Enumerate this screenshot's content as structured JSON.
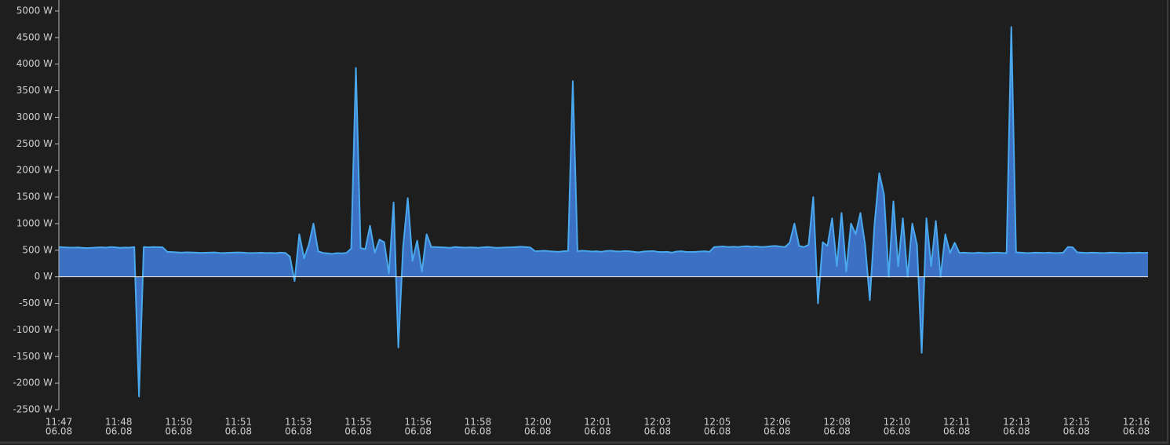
{
  "chart_data": {
    "type": "area",
    "series": [
      {
        "color": "#4aa8ee",
        "fill": "#3b70c2",
        "values": [
          560,
          555,
          550,
          548,
          552,
          545,
          540,
          545,
          550,
          555,
          548,
          560,
          555,
          545,
          550,
          548,
          560,
          -2250,
          560,
          555,
          560,
          558,
          555,
          470,
          465,
          460,
          455,
          460,
          458,
          455,
          450,
          452,
          455,
          458,
          450,
          448,
          452,
          455,
          458,
          455,
          450,
          448,
          450,
          452,
          448,
          450,
          445,
          455,
          450,
          380,
          -80,
          800,
          350,
          600,
          1000,
          480,
          450,
          440,
          430,
          445,
          440,
          450,
          530,
          3930,
          540,
          520,
          960,
          450,
          700,
          650,
          60,
          1400,
          -1330,
          550,
          1480,
          300,
          680,
          100,
          800,
          560,
          560,
          555,
          550,
          545,
          560,
          555,
          548,
          552,
          550,
          545,
          555,
          560,
          550,
          545,
          548,
          552,
          555,
          560,
          565,
          560,
          550,
          480,
          485,
          490,
          480,
          475,
          470,
          480,
          485,
          3680,
          480,
          490,
          485,
          475,
          480,
          470,
          485,
          490,
          480,
          475,
          485,
          480,
          470,
          460,
          475,
          480,
          485,
          470,
          465,
          470,
          455,
          475,
          480,
          470,
          465,
          470,
          475,
          480,
          470,
          560,
          565,
          570,
          560,
          565,
          560,
          570,
          575,
          565,
          570,
          560,
          565,
          575,
          580,
          570,
          560,
          640,
          1000,
          580,
          560,
          600,
          1500,
          -500,
          650,
          580,
          1100,
          200,
          1200,
          100,
          1000,
          800,
          1200,
          600,
          -440,
          1000,
          1950,
          1550,
          0,
          1420,
          200,
          1100,
          0,
          1000,
          600,
          -1430,
          1100,
          200,
          1050,
          0,
          800,
          450,
          640,
          450,
          455,
          450,
          445,
          455,
          450,
          448,
          452,
          455,
          450,
          445,
          4700,
          460,
          455,
          450,
          448,
          455,
          452,
          450,
          455,
          448,
          450,
          455,
          560,
          555,
          460,
          455,
          450,
          455,
          452,
          448,
          450,
          455,
          452,
          450,
          448,
          452,
          450,
          455,
          450,
          452
        ]
      }
    ],
    "ylim": [
      -2500,
      5000
    ],
    "yticks": [
      {
        "value": 5000,
        "label": "5000 W"
      },
      {
        "value": 4500,
        "label": "4500 W"
      },
      {
        "value": 4000,
        "label": "4000 W"
      },
      {
        "value": 3500,
        "label": "3500 W"
      },
      {
        "value": 3000,
        "label": "3000 W"
      },
      {
        "value": 2500,
        "label": "2500 W"
      },
      {
        "value": 2000,
        "label": "2000 W"
      },
      {
        "value": 1500,
        "label": "1500 W"
      },
      {
        "value": 1000,
        "label": "1000 W"
      },
      {
        "value": 500,
        "label": "500 W"
      },
      {
        "value": 0,
        "label": "0 W"
      },
      {
        "value": -500,
        "label": "-500 W"
      },
      {
        "value": -1000,
        "label": "-1000 W"
      },
      {
        "value": -1500,
        "label": "-1500 W"
      },
      {
        "value": -2000,
        "label": "-2000 W"
      },
      {
        "value": -2500,
        "label": "-2500 W"
      }
    ],
    "xticks": [
      {
        "time": "11:47",
        "date": "06.08"
      },
      {
        "time": "11:48",
        "date": "06.08"
      },
      {
        "time": "11:50",
        "date": "06.08"
      },
      {
        "time": "11:51",
        "date": "06.08"
      },
      {
        "time": "11:53",
        "date": "06.08"
      },
      {
        "time": "11:55",
        "date": "06.08"
      },
      {
        "time": "11:56",
        "date": "06.08"
      },
      {
        "time": "11:58",
        "date": "06.08"
      },
      {
        "time": "12:00",
        "date": "06.08"
      },
      {
        "time": "12:01",
        "date": "06.08"
      },
      {
        "time": "12:03",
        "date": "06.08"
      },
      {
        "time": "12:05",
        "date": "06.08"
      },
      {
        "time": "12:06",
        "date": "06.08"
      },
      {
        "time": "12:08",
        "date": "06.08"
      },
      {
        "time": "12:10",
        "date": "06.08"
      },
      {
        "time": "12:11",
        "date": "06.08"
      },
      {
        "time": "12:13",
        "date": "06.08"
      },
      {
        "time": "12:15",
        "date": "06.08"
      },
      {
        "time": "12:16",
        "date": "06.08"
      }
    ]
  }
}
